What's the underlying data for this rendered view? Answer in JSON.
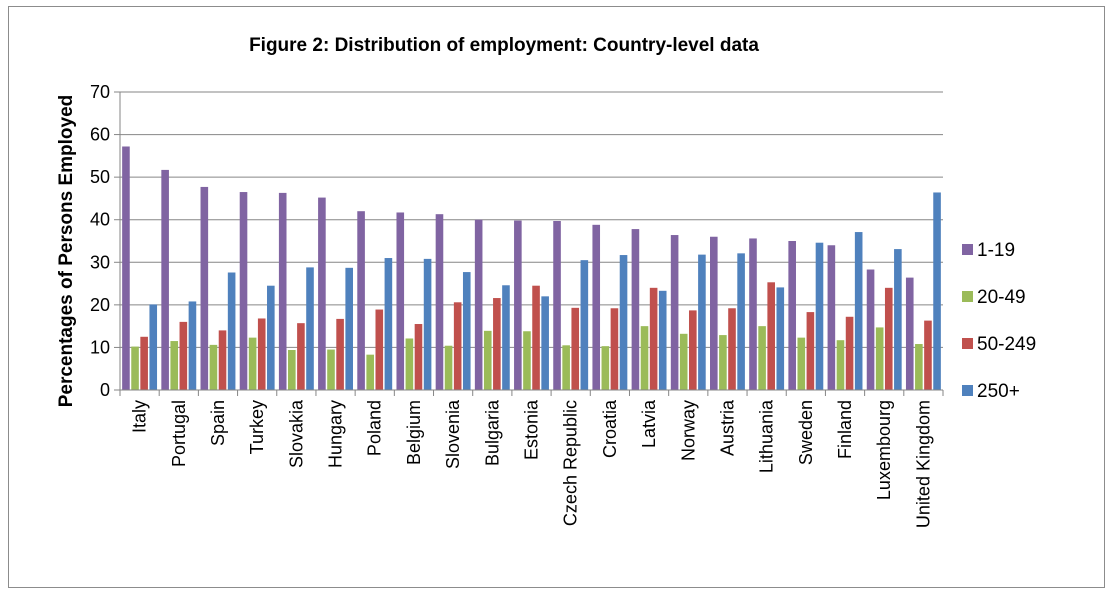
{
  "chart_data": {
    "type": "bar",
    "title": "Figure 2: Distribution of employment: Country-level data",
    "xlabel": "",
    "ylabel": "Percentages of Persons Employed",
    "ylim": [
      0,
      70
    ],
    "yticks": [
      0,
      10,
      20,
      30,
      40,
      50,
      60,
      70
    ],
    "grid": true,
    "legend_position": "right",
    "categories": [
      "Italy",
      "Portugal",
      "Spain",
      "Turkey",
      "Slovakia",
      "Hungary",
      "Poland",
      "Belgium",
      "Slovenia",
      "Bulgaria",
      "Estonia",
      "Czech Republic",
      "Croatia",
      "Latvia",
      "Norway",
      "Austria",
      "Lithuania",
      "Sweden",
      "Finland",
      "Luxembourg",
      "United Kingdom"
    ],
    "series": [
      {
        "name": "1-19",
        "color": "#8064a2",
        "values": [
          57.2,
          51.7,
          47.7,
          46.5,
          46.3,
          45.2,
          42.0,
          41.7,
          41.3,
          40.0,
          39.8,
          39.7,
          38.8,
          37.8,
          36.4,
          36.0,
          35.6,
          35.0,
          34.0,
          28.3,
          26.4
        ]
      },
      {
        "name": "20-49",
        "color": "#9bbb59",
        "values": [
          10.2,
          11.5,
          10.6,
          12.3,
          9.4,
          9.5,
          8.3,
          12.1,
          10.4,
          13.9,
          13.8,
          10.5,
          10.3,
          15.0,
          13.2,
          12.9,
          15.0,
          12.3,
          11.7,
          14.7,
          10.8
        ]
      },
      {
        "name": "50-249",
        "color": "#c0504d",
        "values": [
          12.5,
          16.0,
          14.0,
          16.8,
          15.7,
          16.7,
          18.9,
          15.5,
          20.6,
          21.6,
          24.5,
          19.3,
          19.2,
          24.0,
          18.7,
          19.2,
          25.3,
          18.3,
          17.2,
          24.0,
          16.3
        ]
      },
      {
        "name": "250+",
        "color": "#4f81bd",
        "values": [
          20.1,
          20.8,
          27.6,
          24.5,
          28.8,
          28.7,
          31.0,
          30.8,
          27.7,
          24.6,
          22.0,
          30.5,
          31.7,
          23.3,
          31.8,
          32.1,
          24.1,
          34.6,
          37.1,
          33.1,
          46.4
        ]
      }
    ]
  }
}
